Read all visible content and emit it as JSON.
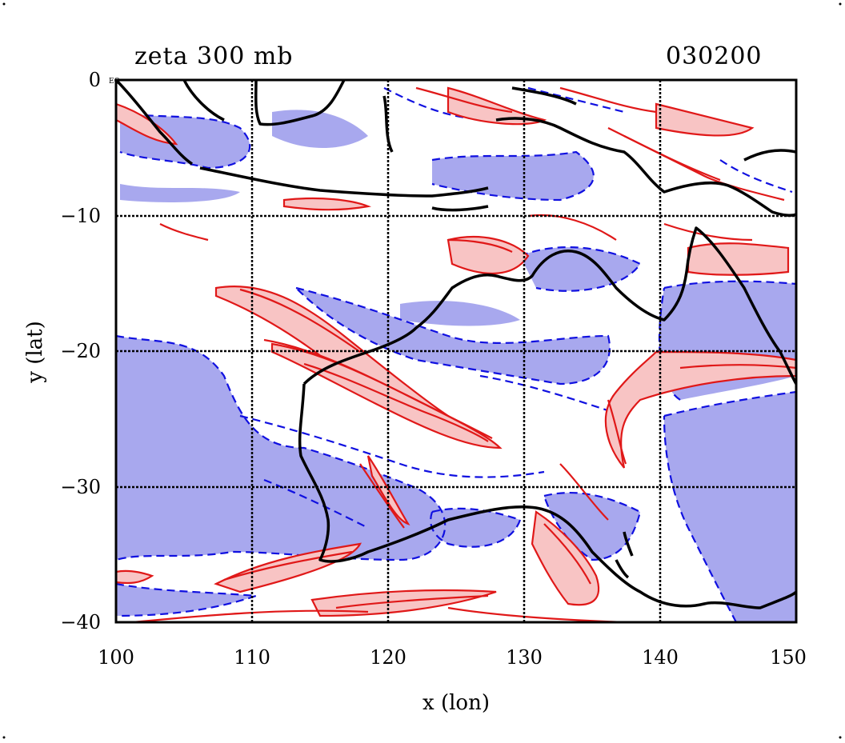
{
  "title_left": "zeta 300 mb",
  "title_right": "030200",
  "equator_tag": "EQ",
  "x_axis": {
    "label": "x (lon)",
    "ticks": [
      100,
      110,
      120,
      130,
      140,
      150
    ],
    "range": [
      100,
      150
    ]
  },
  "y_axis": {
    "label": "y (lat)",
    "ticks": [
      0,
      -10,
      -20,
      -30,
      -40
    ],
    "tick_labels": [
      "0",
      "−10",
      "−20",
      "−30",
      "−40"
    ],
    "range": [
      -40,
      0
    ]
  },
  "grid": true,
  "colors": {
    "negative_fill": "#a8a8ee",
    "negative_line": "#1010e0",
    "positive_fill": "#f8c4c4",
    "positive_line": "#e01818",
    "coast": "#000000"
  }
}
